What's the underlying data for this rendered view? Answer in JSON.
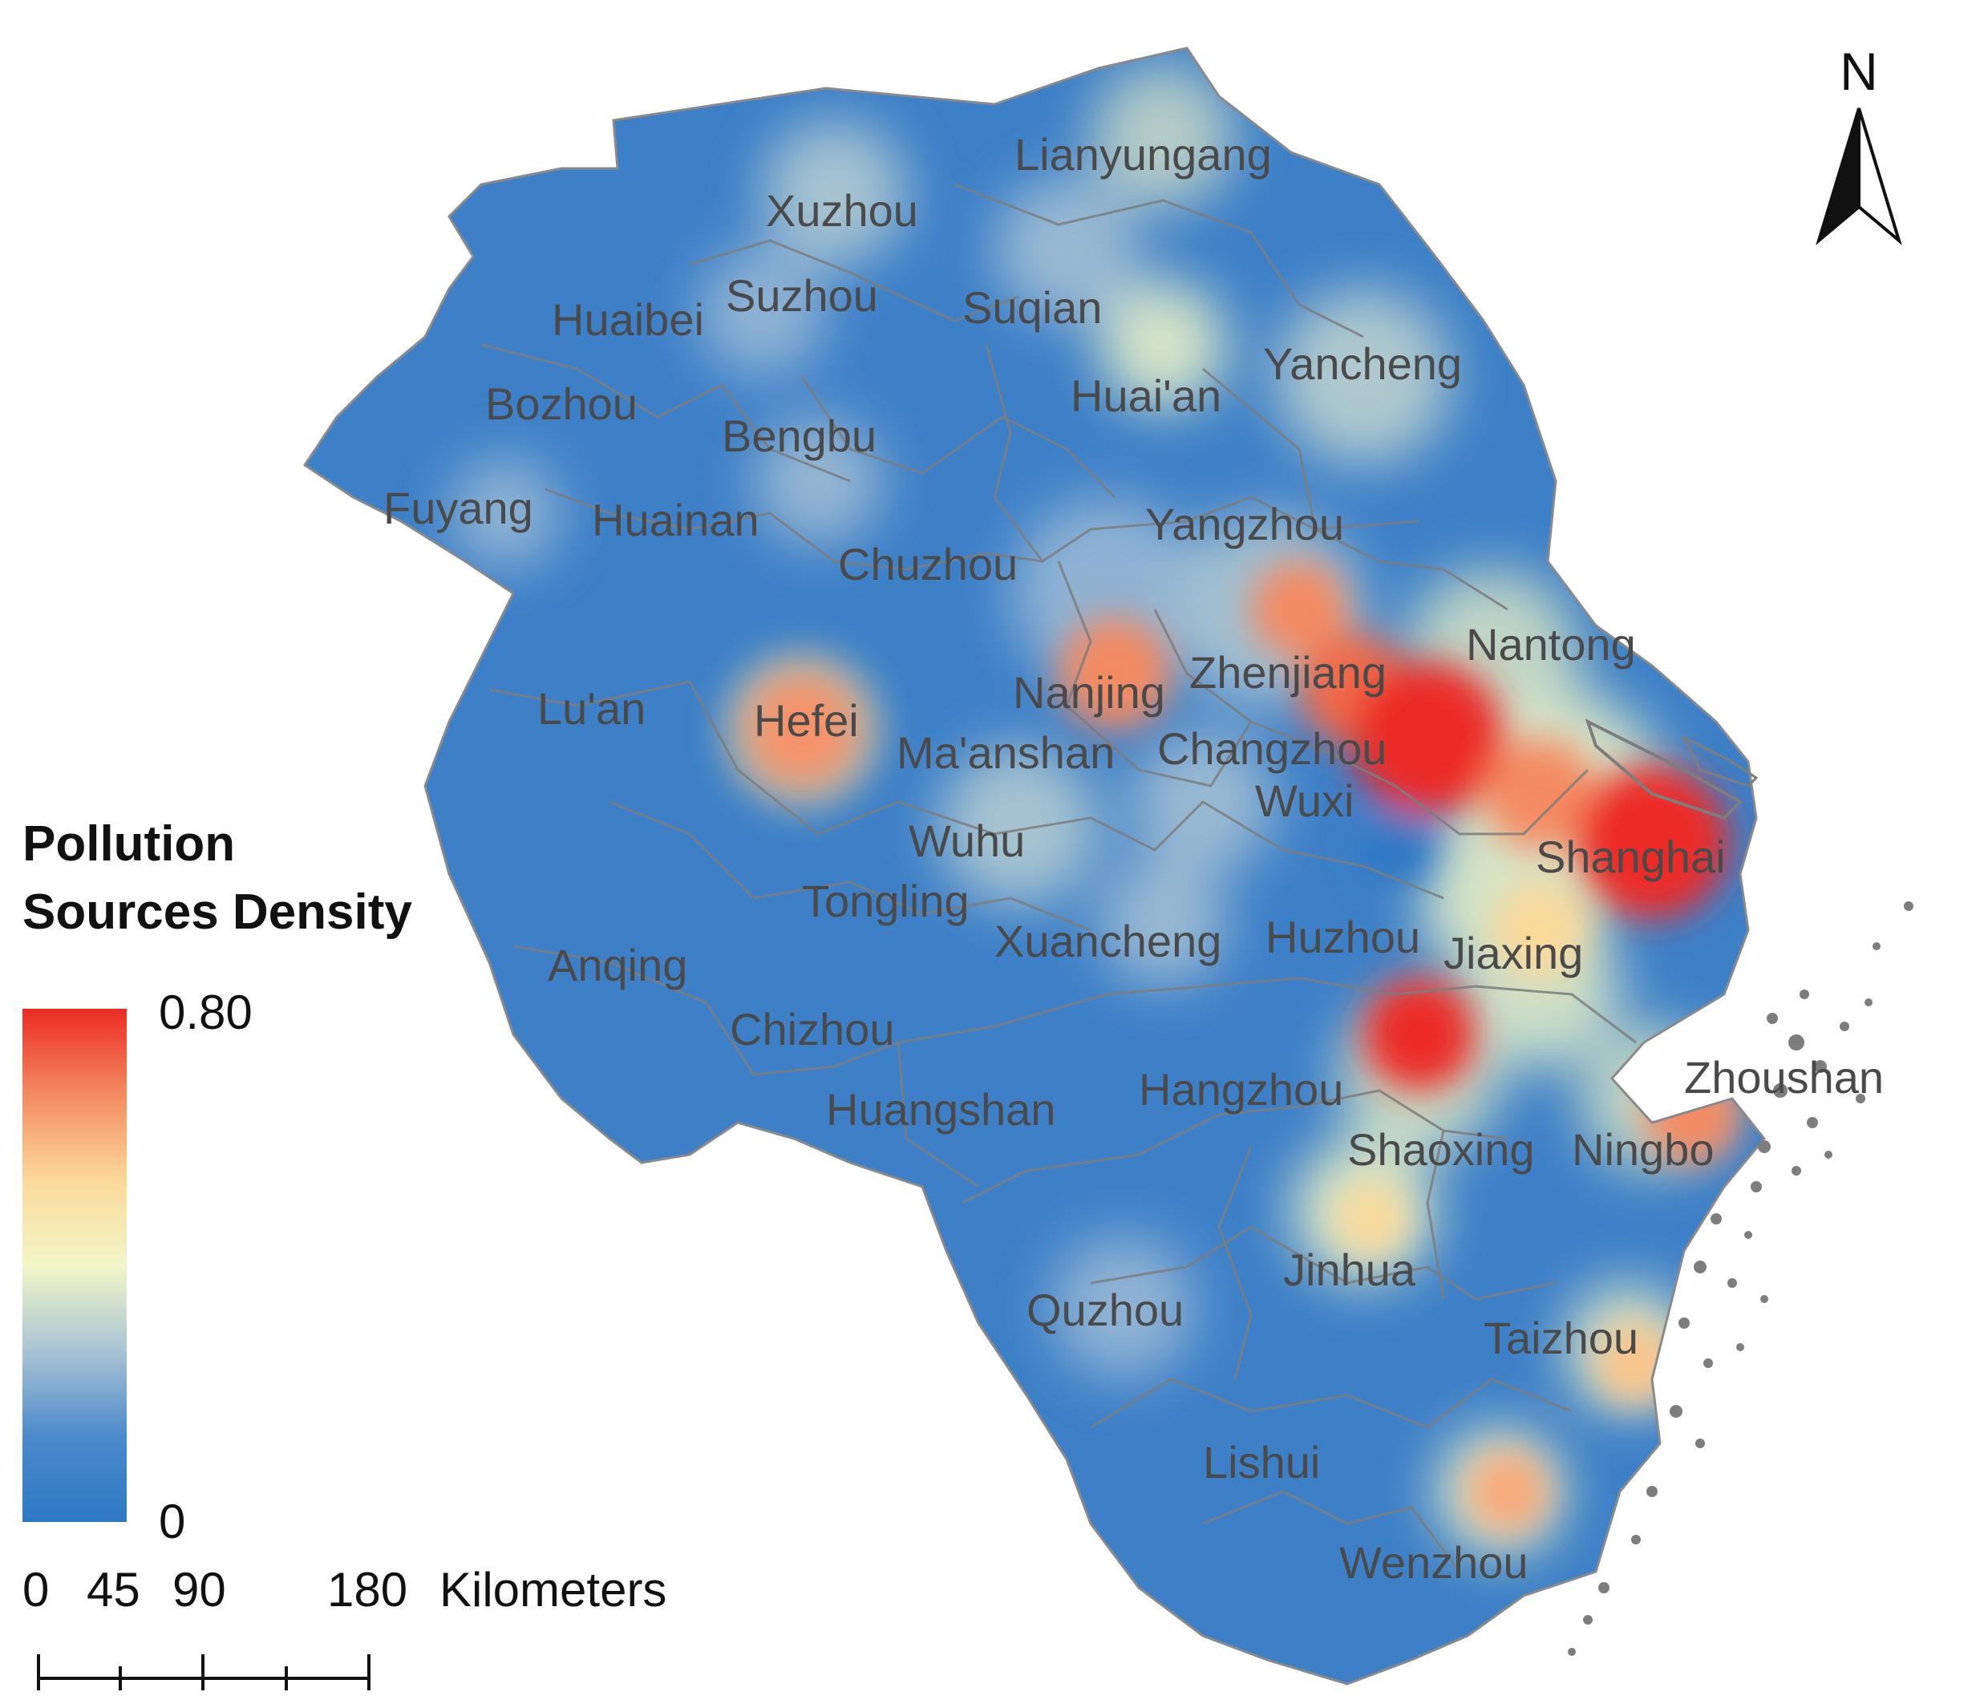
{
  "legend": {
    "title_line1": "Pollution",
    "title_line2": "Sources Density",
    "max_label": "0.80",
    "min_label": "0",
    "max_value": 0.8,
    "min_value": 0,
    "colors": [
      "#2e78c4",
      "#4b8acb",
      "#a9c3d4",
      "#f2f6c8",
      "#fbd99a",
      "#f48a62",
      "#ec2b25"
    ]
  },
  "north_arrow": {
    "label": "N"
  },
  "scale_bar": {
    "tick_0": "0",
    "tick_45": "45",
    "tick_90": "90",
    "tick_180": "180",
    "unit": "Kilometers"
  },
  "cities": [
    {
      "name": "Lianyungang"
    },
    {
      "name": "Xuzhou"
    },
    {
      "name": "Suzhou"
    },
    {
      "name": "Suqian"
    },
    {
      "name": "Huaibei"
    },
    {
      "name": "Yancheng"
    },
    {
      "name": "Bozhou"
    },
    {
      "name": "Huai'an"
    },
    {
      "name": "Bengbu"
    },
    {
      "name": "Fuyang"
    },
    {
      "name": "Huainan"
    },
    {
      "name": "Yangzhou"
    },
    {
      "name": "Chuzhou"
    },
    {
      "name": "Nantong"
    },
    {
      "name": "Zhenjiang"
    },
    {
      "name": "Nanjing"
    },
    {
      "name": "Lu'an"
    },
    {
      "name": "Hefei"
    },
    {
      "name": "Ma'anshan"
    },
    {
      "name": "Changzhou"
    },
    {
      "name": "Wuxi"
    },
    {
      "name": "Wuhu"
    },
    {
      "name": "Shanghai"
    },
    {
      "name": "Tongling"
    },
    {
      "name": "Xuancheng"
    },
    {
      "name": "Huzhou"
    },
    {
      "name": "Jiaxing"
    },
    {
      "name": "Anqing"
    },
    {
      "name": "Chizhou"
    },
    {
      "name": "Zhoushan"
    },
    {
      "name": "Hangzhou"
    },
    {
      "name": "Huangshan"
    },
    {
      "name": "Shaoxing"
    },
    {
      "name": "Ningbo"
    },
    {
      "name": "Jinhua"
    },
    {
      "name": "Quzhou"
    },
    {
      "name": "Taizhou"
    },
    {
      "name": "Lishui"
    },
    {
      "name": "Wenzhou"
    }
  ],
  "colors": {
    "low": "#2e78c4",
    "high": "#ec2b25",
    "boundary": "#7d7d7d",
    "label": "#4a4a4a"
  }
}
